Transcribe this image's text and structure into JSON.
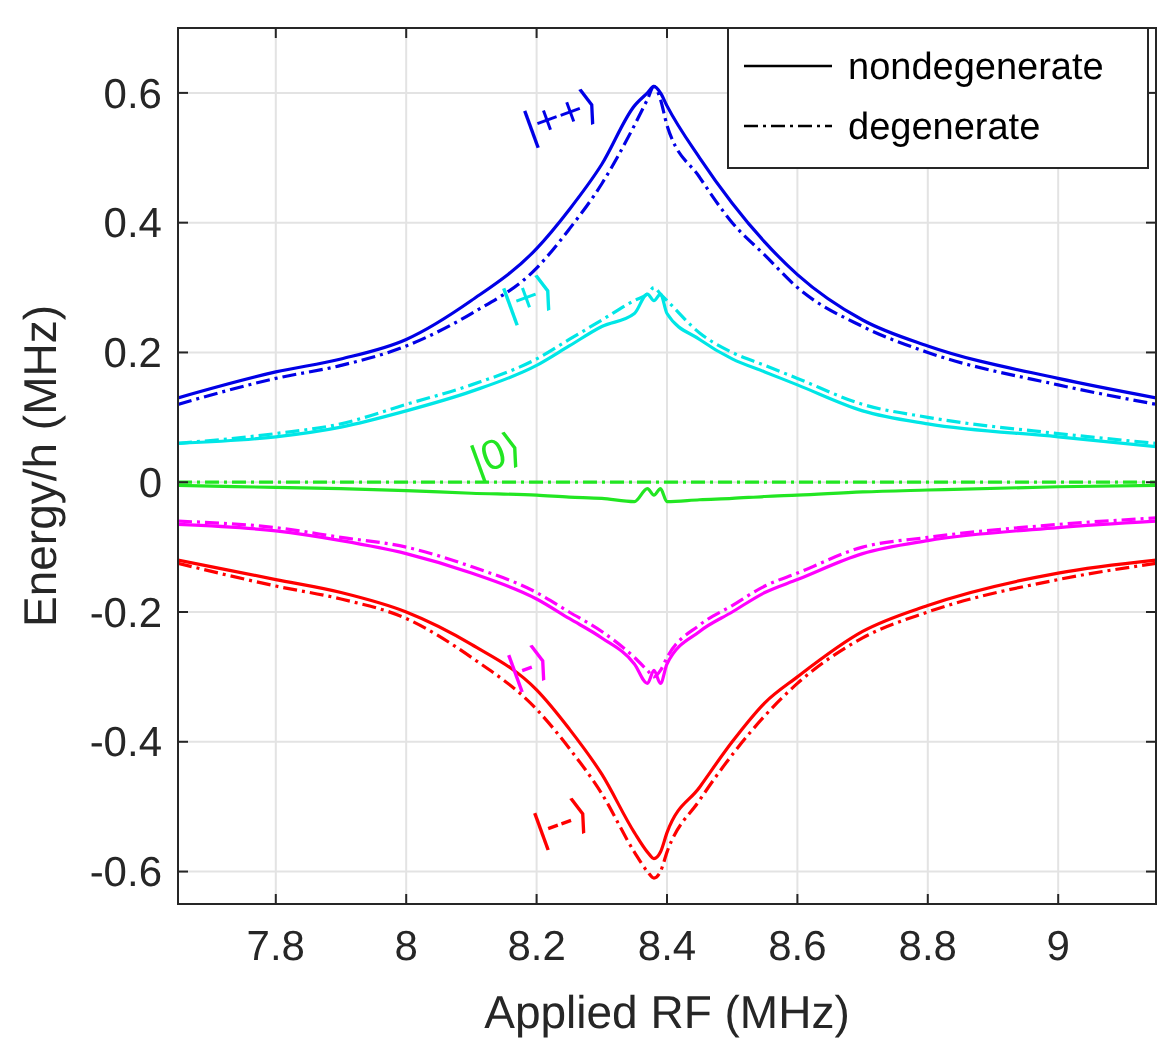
{
  "chart_data": {
    "type": "line",
    "xlabel": "Applied RF (MHz)",
    "ylabel": "Energy/h (MHz)",
    "xlim": [
      7.65,
      9.15
    ],
    "ylim": [
      -0.65,
      0.7
    ],
    "xticks": [
      7.8,
      8,
      8.2,
      8.4,
      8.6,
      8.8,
      9
    ],
    "yticks": [
      -0.6,
      -0.4,
      -0.2,
      0,
      0.2,
      0.4,
      0.6
    ],
    "grid": true,
    "legend": "top right",
    "x": [
      7.65,
      7.8,
      7.9,
      8.0,
      8.1,
      8.2,
      8.25,
      8.3,
      8.35,
      8.37,
      8.38,
      8.39,
      8.4,
      8.45,
      8.5,
      8.55,
      8.6,
      8.7,
      8.8,
      9.0,
      9.15
    ],
    "series": [
      {
        "name": "nondegenerate",
        "color": "#000000",
        "line_style": "solid",
        "values": [
          null,
          null,
          null,
          null,
          null,
          null,
          null,
          null,
          null,
          null,
          null,
          null,
          null,
          null,
          null,
          null,
          null,
          null,
          null,
          null,
          null
        ]
      },
      {
        "name": "degenerate",
        "color": "#000000",
        "line_style": "dashed",
        "values": [
          null,
          null,
          null,
          null,
          null,
          null,
          null,
          null,
          null,
          null,
          null,
          null,
          null,
          null,
          null,
          null,
          null,
          null,
          null,
          null,
          null
        ]
      },
      {
        "color": "#0000e6",
        "line_style": "solid",
        "values": [
          0.13,
          0.17,
          0.19,
          0.22,
          0.28,
          0.36,
          0.42,
          0.49,
          0.58,
          0.6,
          0.61,
          0.6,
          0.58,
          0.5,
          0.43,
          0.37,
          0.32,
          0.25,
          0.21,
          0.16,
          0.13
        ]
      },
      {
        "color": "#0000e6",
        "line_style": "dashed",
        "values": [
          0.12,
          0.16,
          0.18,
          0.21,
          0.26,
          0.33,
          0.39,
          0.46,
          0.55,
          0.59,
          0.61,
          0.59,
          0.55,
          0.47,
          0.4,
          0.35,
          0.3,
          0.24,
          0.2,
          0.15,
          0.12
        ]
      },
      {
        "color": "#00e6e6",
        "line_style": "solid",
        "values": [
          0.06,
          0.07,
          0.085,
          0.11,
          0.14,
          0.18,
          0.21,
          0.24,
          0.26,
          0.29,
          0.28,
          0.29,
          0.26,
          0.22,
          0.19,
          0.17,
          0.15,
          0.11,
          0.09,
          0.07,
          0.055
        ]
      },
      {
        "color": "#00e6e6",
        "line_style": "dashed",
        "values": [
          0.06,
          0.075,
          0.09,
          0.12,
          0.15,
          0.19,
          0.22,
          0.25,
          0.28,
          0.29,
          0.3,
          0.29,
          0.28,
          0.23,
          0.2,
          0.18,
          0.16,
          0.12,
          0.1,
          0.075,
          0.06
        ]
      },
      {
        "color": "#22e622",
        "line_style": "solid",
        "values": [
          -0.005,
          -0.008,
          -0.01,
          -0.013,
          -0.017,
          -0.02,
          -0.023,
          -0.025,
          -0.03,
          -0.01,
          -0.02,
          -0.01,
          -0.03,
          -0.027,
          -0.025,
          -0.022,
          -0.02,
          -0.015,
          -0.012,
          -0.007,
          -0.005
        ]
      },
      {
        "color": "#22e622",
        "line_style": "dashed",
        "values": [
          0,
          0,
          0,
          0,
          0,
          0,
          0,
          0,
          0,
          0,
          0,
          0,
          0,
          0,
          0,
          0,
          0,
          0,
          0,
          0,
          0
        ]
      },
      {
        "color": "#ff00ff",
        "line_style": "solid",
        "values": [
          -0.065,
          -0.075,
          -0.09,
          -0.11,
          -0.14,
          -0.18,
          -0.21,
          -0.24,
          -0.28,
          -0.31,
          -0.29,
          -0.31,
          -0.28,
          -0.23,
          -0.2,
          -0.17,
          -0.15,
          -0.11,
          -0.09,
          -0.07,
          -0.06
        ]
      },
      {
        "color": "#ff00ff",
        "line_style": "dashed",
        "values": [
          -0.06,
          -0.07,
          -0.085,
          -0.1,
          -0.13,
          -0.17,
          -0.2,
          -0.23,
          -0.27,
          -0.29,
          -0.3,
          -0.29,
          -0.27,
          -0.22,
          -0.19,
          -0.16,
          -0.14,
          -0.1,
          -0.085,
          -0.065,
          -0.055
        ]
      },
      {
        "color": "#ff0000",
        "line_style": "solid",
        "values": [
          -0.12,
          -0.15,
          -0.17,
          -0.2,
          -0.25,
          -0.32,
          -0.38,
          -0.45,
          -0.54,
          -0.57,
          -0.58,
          -0.57,
          -0.54,
          -0.47,
          -0.4,
          -0.34,
          -0.3,
          -0.23,
          -0.19,
          -0.14,
          -0.12
        ]
      },
      {
        "color": "#ff0000",
        "line_style": "dashed",
        "values": [
          -0.125,
          -0.16,
          -0.18,
          -0.21,
          -0.27,
          -0.35,
          -0.41,
          -0.48,
          -0.57,
          -0.6,
          -0.61,
          -0.6,
          -0.57,
          -0.49,
          -0.42,
          -0.36,
          -0.31,
          -0.24,
          -0.2,
          -0.15,
          -0.125
        ]
      }
    ],
    "annotations": [
      "|++⟩",
      "|+⟩",
      "|0⟩",
      "|-⟩",
      "|--⟩"
    ]
  }
}
